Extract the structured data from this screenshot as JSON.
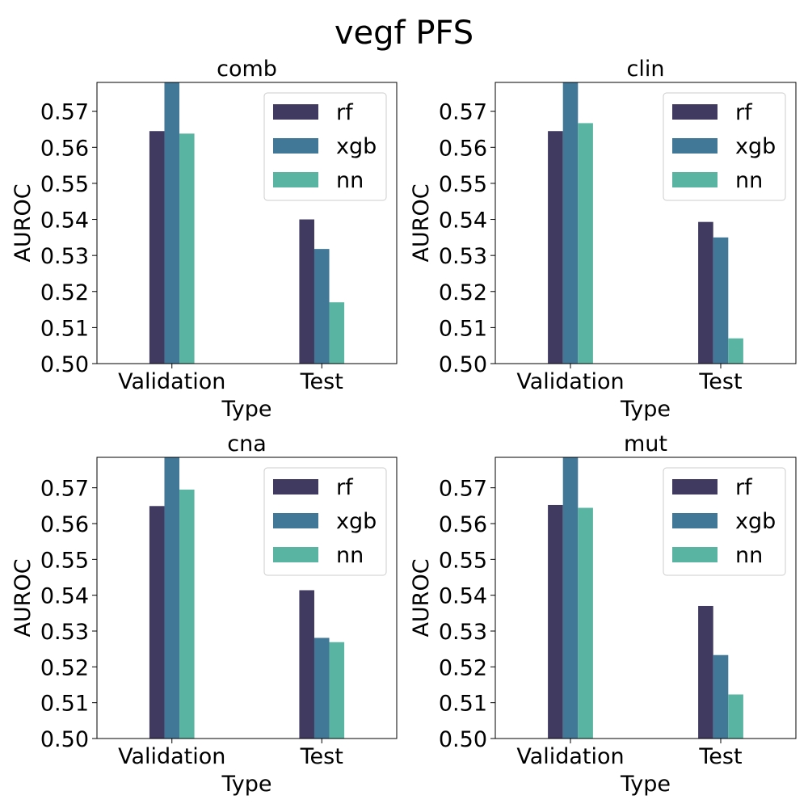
{
  "figure": {
    "title": "vegf PFS"
  },
  "chart_data": [
    {
      "type": "bar",
      "title": "comb",
      "xlabel": "Type",
      "ylabel": "AUROC",
      "categories": [
        "Validation",
        "Test"
      ],
      "ylim": [
        0.5,
        0.578
      ],
      "yticks": [
        "0.50",
        "0.51",
        "0.52",
        "0.53",
        "0.54",
        "0.55",
        "0.56",
        "0.57"
      ],
      "legend_position": "top-right",
      "series": [
        {
          "name": "rf",
          "color": "#403a60",
          "values": [
            0.5645,
            0.54
          ]
        },
        {
          "name": "xgb",
          "color": "#417797",
          "values": [
            0.58,
            0.5318
          ]
        },
        {
          "name": "nn",
          "color": "#59b4a1",
          "values": [
            0.5638,
            0.517
          ]
        }
      ]
    },
    {
      "type": "bar",
      "title": "clin",
      "xlabel": "Type",
      "ylabel": "AUROC",
      "categories": [
        "Validation",
        "Test"
      ],
      "ylim": [
        0.5,
        0.578
      ],
      "yticks": [
        "0.50",
        "0.51",
        "0.52",
        "0.53",
        "0.54",
        "0.55",
        "0.56",
        "0.57"
      ],
      "legend_position": "top-right",
      "series": [
        {
          "name": "rf",
          "color": "#403a60",
          "values": [
            0.5645,
            0.5393
          ]
        },
        {
          "name": "xgb",
          "color": "#417797",
          "values": [
            0.58,
            0.535
          ]
        },
        {
          "name": "nn",
          "color": "#59b4a1",
          "values": [
            0.5667,
            0.507
          ]
        }
      ]
    },
    {
      "type": "bar",
      "title": "cna",
      "xlabel": "Type",
      "ylabel": "AUROC",
      "categories": [
        "Validation",
        "Test"
      ],
      "ylim": [
        0.5,
        0.5785
      ],
      "yticks": [
        "0.50",
        "0.51",
        "0.52",
        "0.53",
        "0.54",
        "0.55",
        "0.56",
        "0.57"
      ],
      "legend_position": "top-right",
      "series": [
        {
          "name": "rf",
          "color": "#403a60",
          "values": [
            0.5649,
            0.5414
          ]
        },
        {
          "name": "xgb",
          "color": "#417797",
          "values": [
            0.58,
            0.5281
          ]
        },
        {
          "name": "nn",
          "color": "#59b4a1",
          "values": [
            0.5695,
            0.5269
          ]
        }
      ]
    },
    {
      "type": "bar",
      "title": "mut",
      "xlabel": "Type",
      "ylabel": "AUROC",
      "categories": [
        "Validation",
        "Test"
      ],
      "ylim": [
        0.5,
        0.5785
      ],
      "yticks": [
        "0.50",
        "0.51",
        "0.52",
        "0.53",
        "0.54",
        "0.55",
        "0.56",
        "0.57"
      ],
      "legend_position": "top-right",
      "series": [
        {
          "name": "rf",
          "color": "#403a60",
          "values": [
            0.5652,
            0.537
          ]
        },
        {
          "name": "xgb",
          "color": "#417797",
          "values": [
            0.58,
            0.5233
          ]
        },
        {
          "name": "nn",
          "color": "#59b4a1",
          "values": [
            0.5644,
            0.5123
          ]
        }
      ]
    }
  ]
}
